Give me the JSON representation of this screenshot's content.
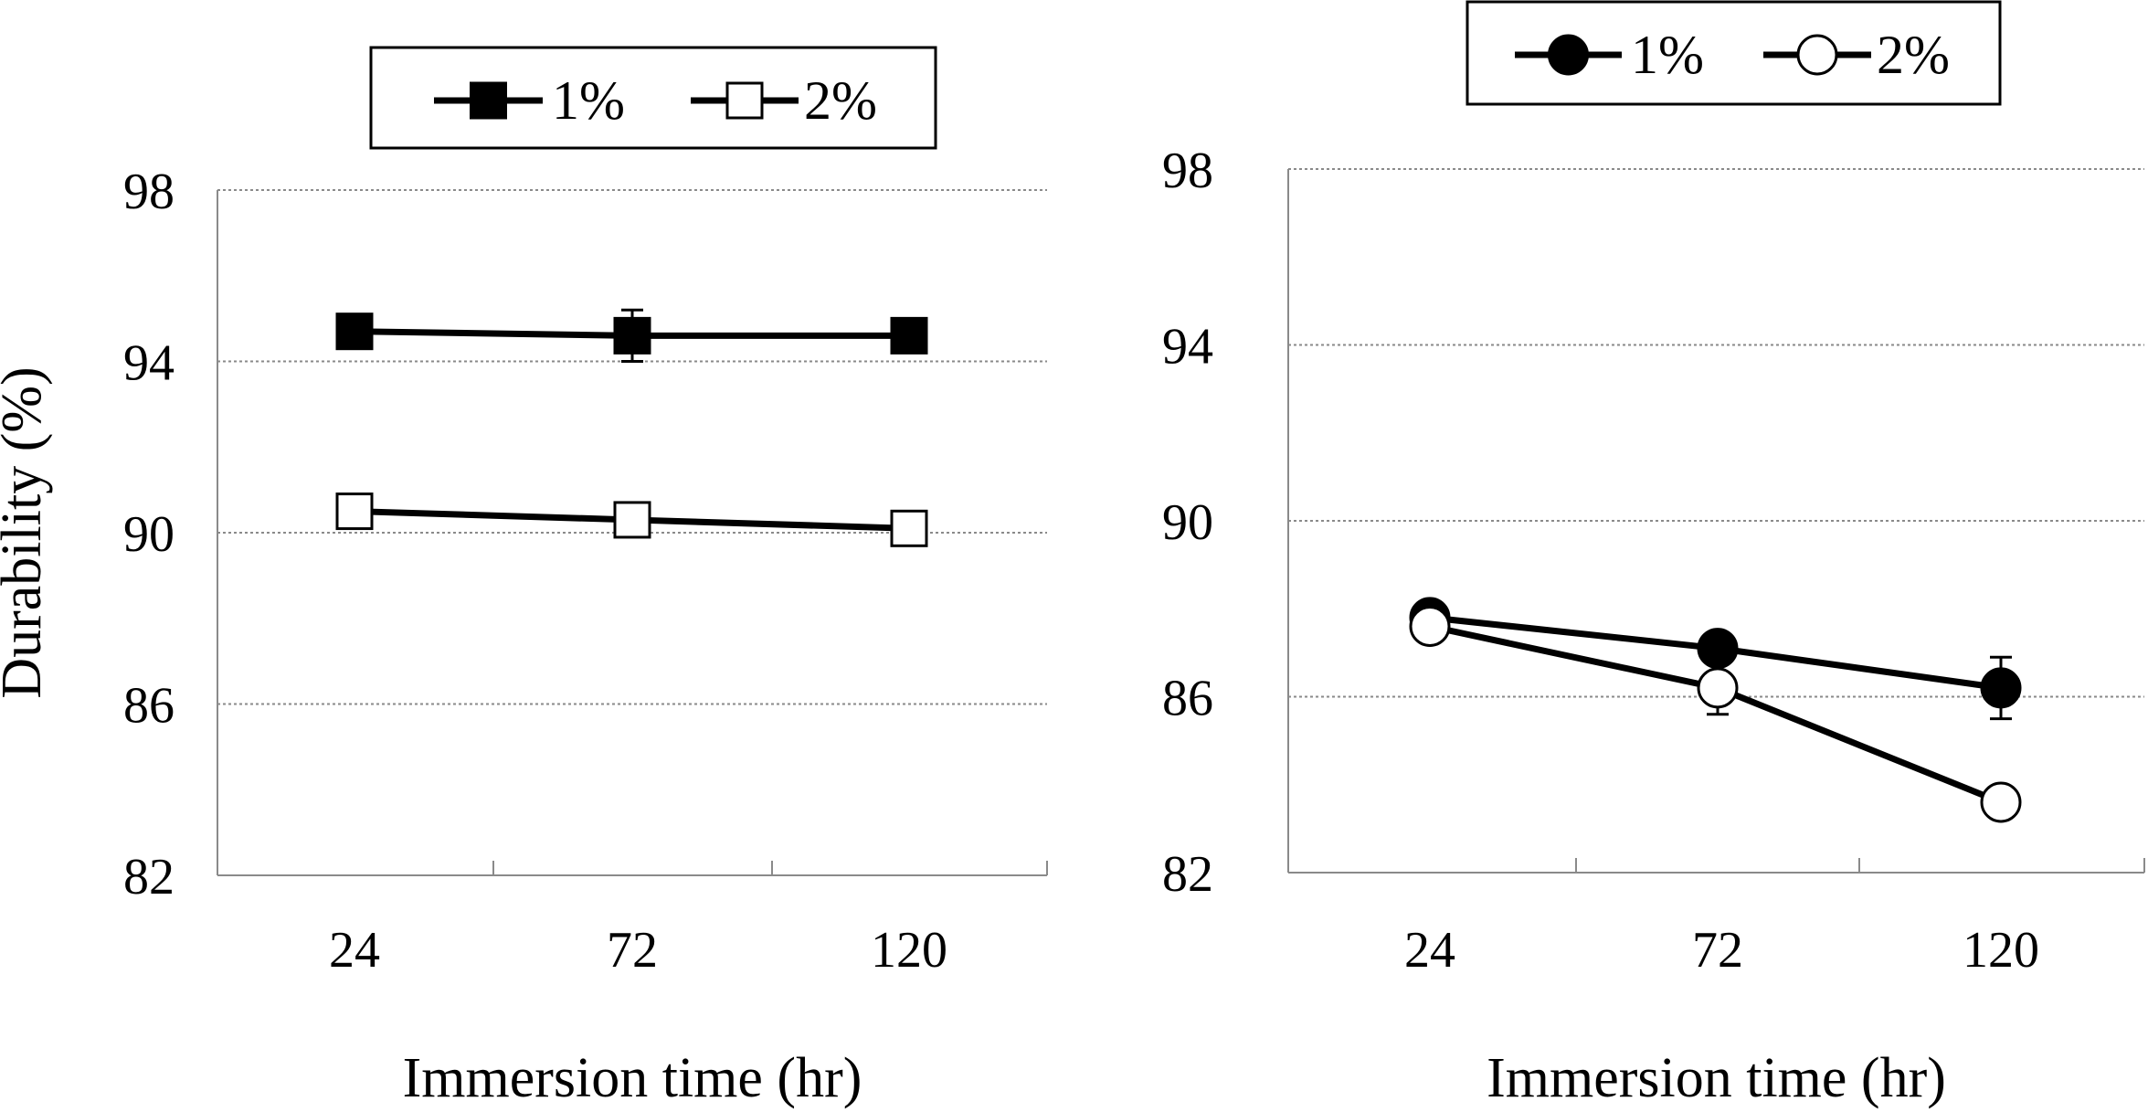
{
  "chart_data": [
    {
      "type": "line",
      "xlabel": "Immersion time (hr)",
      "ylabel": "Durability (%)",
      "categories": [
        "24",
        "72",
        "120"
      ],
      "ylim": [
        82,
        98
      ],
      "yticks": [
        "82",
        "86",
        "90",
        "94",
        "98"
      ],
      "grid": true,
      "legend_position": "top",
      "series": [
        {
          "name": "1%",
          "marker": "filled-square",
          "values": [
            94.7,
            94.6,
            94.6
          ],
          "error": [
            0,
            0.6,
            0
          ]
        },
        {
          "name": "2%",
          "marker": "open-square",
          "values": [
            90.5,
            90.3,
            90.1
          ],
          "error": [
            0,
            0,
            0
          ]
        }
      ]
    },
    {
      "type": "line",
      "xlabel": "Immersion time (hr)",
      "ylabel": "",
      "categories": [
        "24",
        "72",
        "120"
      ],
      "ylim": [
        82,
        98
      ],
      "yticks": [
        "82",
        "86",
        "90",
        "94",
        "98"
      ],
      "grid": true,
      "legend_position": "top",
      "series": [
        {
          "name": "1%",
          "marker": "filled-circle",
          "values": [
            87.8,
            87.1,
            86.2
          ],
          "error": [
            0.3,
            0,
            0.7
          ]
        },
        {
          "name": "2%",
          "marker": "open-circle",
          "values": [
            87.6,
            86.2,
            83.6
          ],
          "error": [
            0,
            0.6,
            0
          ]
        }
      ]
    }
  ]
}
